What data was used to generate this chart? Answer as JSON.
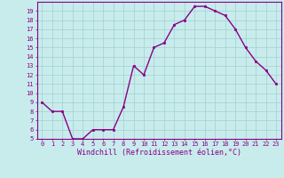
{
  "x": [
    0,
    1,
    2,
    3,
    4,
    5,
    6,
    7,
    8,
    9,
    10,
    11,
    12,
    13,
    14,
    15,
    16,
    17,
    18,
    19,
    20,
    21,
    22,
    23
  ],
  "y": [
    9,
    8,
    8,
    5,
    5,
    6,
    6,
    6,
    8.5,
    13,
    12,
    15,
    15.5,
    17.5,
    18,
    19.5,
    19.5,
    19,
    18.5,
    17,
    15,
    13.5,
    12.5,
    11
  ],
  "line_color": "#880088",
  "marker_color": "#880088",
  "bg_color": "#c8ecec",
  "grid_color": "#a8d4d4",
  "xlabel": "Windchill (Refroidissement éolien,°C)",
  "xlim": [
    -0.5,
    23.5
  ],
  "ylim": [
    5,
    20
  ],
  "yticks": [
    5,
    6,
    7,
    8,
    9,
    10,
    11,
    12,
    13,
    14,
    15,
    16,
    17,
    18,
    19
  ],
  "xticks": [
    0,
    1,
    2,
    3,
    4,
    5,
    6,
    7,
    8,
    9,
    10,
    11,
    12,
    13,
    14,
    15,
    16,
    17,
    18,
    19,
    20,
    21,
    22,
    23
  ],
  "xlabel_color": "#880088",
  "tick_color": "#880088",
  "spine_color": "#880088",
  "xlabel_fontsize": 6.0,
  "tick_fontsize": 5.0,
  "linewidth": 1.0,
  "markersize": 2.0
}
